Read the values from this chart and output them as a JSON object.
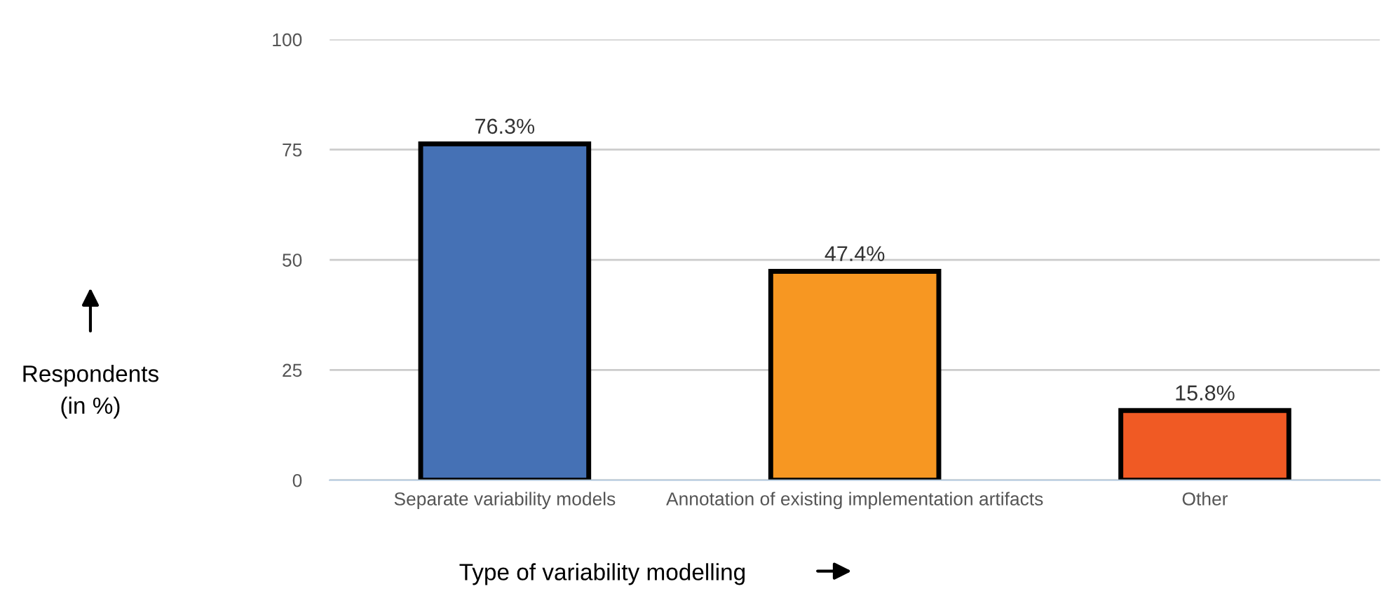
{
  "chart_data": {
    "type": "bar",
    "xlabel": "Type of variability modelling",
    "ylabel": "Respondents\n(in %)",
    "categories": [
      "Separate variability models",
      "Annotation of existing implementation artifacts",
      "Other"
    ],
    "values": [
      76.3,
      47.4,
      15.8
    ],
    "colors": [
      "#4571b5",
      "#f79722",
      "#f05a24"
    ],
    "value_labels": [
      "76.3%",
      "47.4%",
      "15.8%"
    ],
    "ylim": [
      0,
      100
    ],
    "yticks": [
      0,
      25,
      50,
      75,
      100
    ],
    "grid": "y",
    "legend": false
  }
}
